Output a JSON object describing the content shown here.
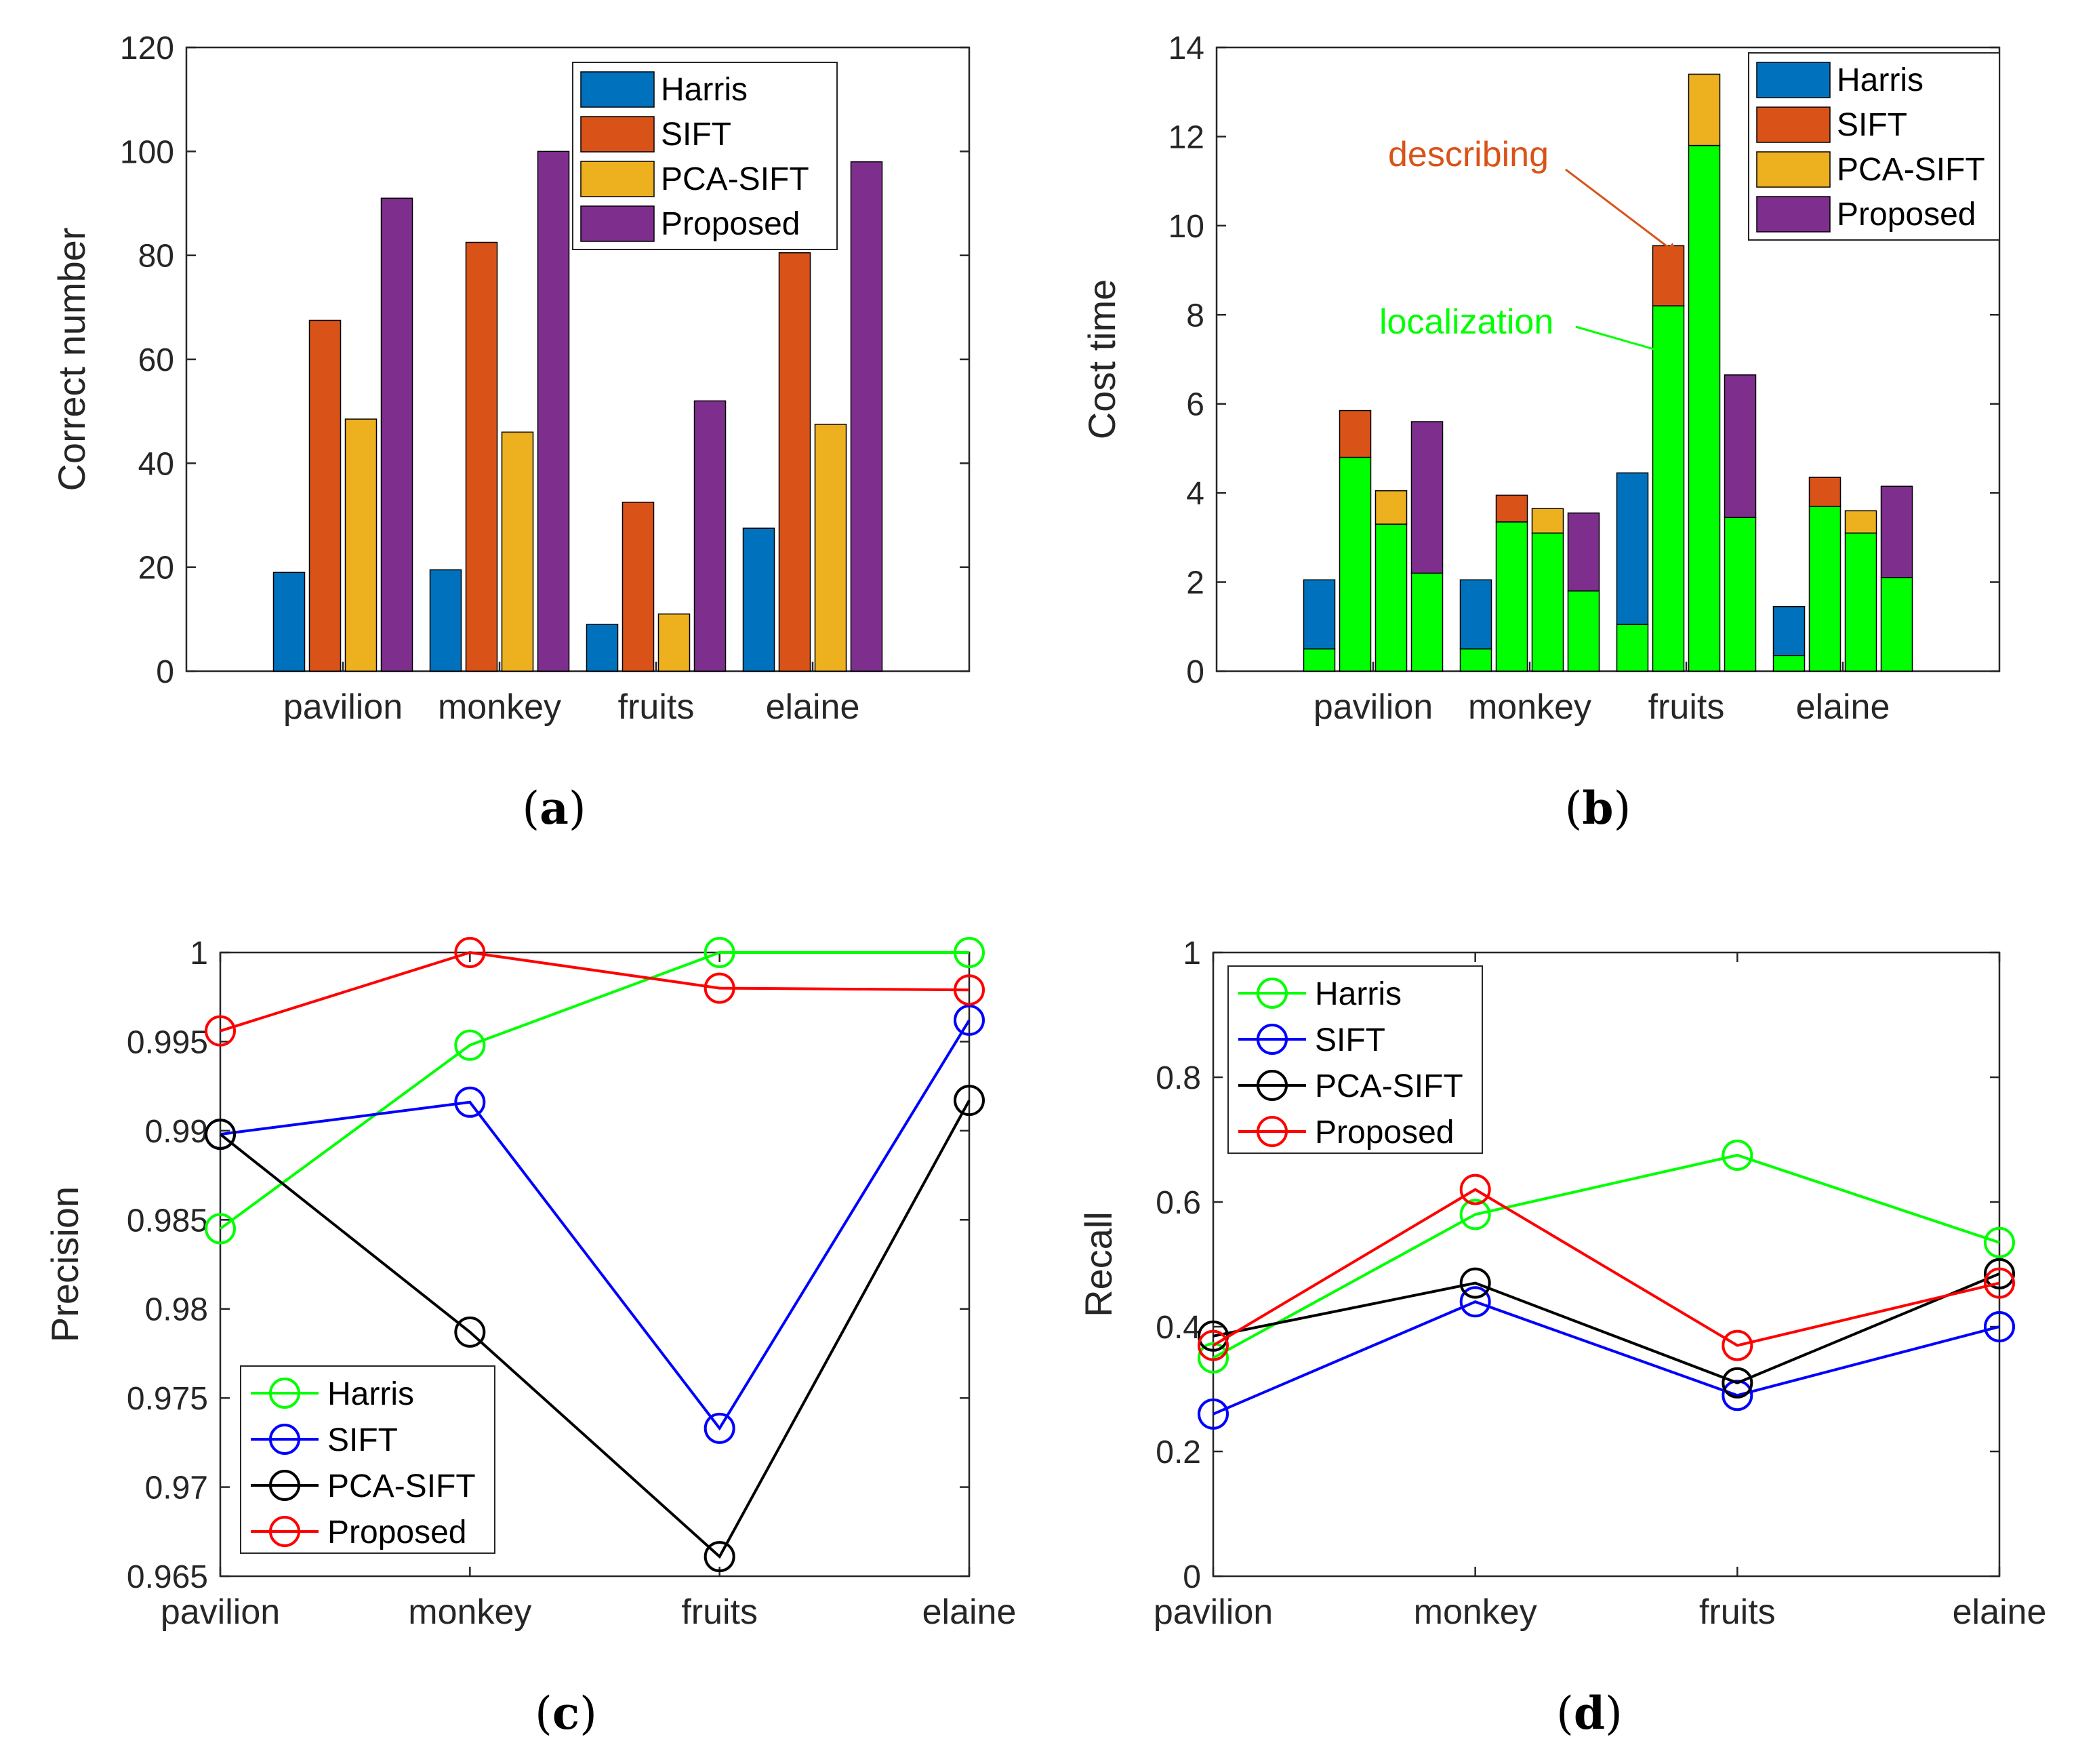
{
  "colors": {
    "harris_bar": "#0072BD",
    "sift_bar": "#D95319",
    "pca_bar": "#EDB120",
    "proposed_bar": "#7E2F8E",
    "localization": "#00FF00",
    "describing_text": "#D95319",
    "harris_line": "#00FF00",
    "sift_line": "#0000FF",
    "pca_line": "#000000",
    "proposed_line": "#FF0000"
  },
  "chart_data": [
    {
      "id": "a",
      "caption_letter": "a",
      "type": "bar",
      "categories": [
        "pavilion",
        "monkey",
        "fruits",
        "elaine"
      ],
      "series": [
        {
          "name": "Harris",
          "values": [
            19,
            19.5,
            9,
            27.5
          ]
        },
        {
          "name": "SIFT",
          "values": [
            67.5,
            82.5,
            32.5,
            80.5
          ]
        },
        {
          "name": "PCA-SIFT",
          "values": [
            48.5,
            46,
            11,
            47.5
          ]
        },
        {
          "name": "Proposed",
          "values": [
            91,
            100,
            52,
            98
          ]
        }
      ],
      "xlabel": "",
      "ylabel": "Correct number",
      "ylim": [
        0,
        120
      ],
      "yticks": [
        "0",
        "20",
        "40",
        "60",
        "80",
        "100",
        "120"
      ],
      "legend": "top-right"
    },
    {
      "id": "b",
      "caption_letter": "b",
      "type": "stacked-bar",
      "categories": [
        "pavilion",
        "monkey",
        "fruits",
        "elaine"
      ],
      "series": [
        {
          "name": "Harris",
          "localization": [
            0.5,
            0.5,
            1.05,
            0.35
          ],
          "total": [
            2.05,
            2.05,
            4.45,
            1.45
          ]
        },
        {
          "name": "SIFT",
          "localization": [
            4.8,
            3.35,
            8.2,
            3.7
          ],
          "total": [
            5.85,
            3.95,
            9.55,
            4.35
          ]
        },
        {
          "name": "PCA-SIFT",
          "localization": [
            3.3,
            3.1,
            11.8,
            3.1
          ],
          "total": [
            4.05,
            3.65,
            13.4,
            3.6
          ]
        },
        {
          "name": "Proposed",
          "localization": [
            2.2,
            1.8,
            3.45,
            2.1
          ],
          "total": [
            5.6,
            3.55,
            6.65,
            4.15
          ]
        }
      ],
      "xlabel": "",
      "ylabel": "Cost time",
      "ylim": [
        0,
        14
      ],
      "yticks": [
        "0",
        "2",
        "4",
        "6",
        "8",
        "10",
        "12",
        "14"
      ],
      "legend": "top-right",
      "annotations": [
        {
          "text": "describing",
          "target_series": "SIFT",
          "target_category": "fruits"
        },
        {
          "text": "localization",
          "target_series": "SIFT",
          "target_category": "fruits"
        }
      ]
    },
    {
      "id": "c",
      "caption_letter": "c",
      "type": "line",
      "categories": [
        "pavilion",
        "monkey",
        "fruits",
        "elaine"
      ],
      "series": [
        {
          "name": "Harris",
          "values": [
            0.9845,
            0.9948,
            1.0,
            1.0
          ]
        },
        {
          "name": "SIFT",
          "values": [
            0.9898,
            0.9916,
            0.9733,
            0.9962
          ]
        },
        {
          "name": "PCA-SIFT",
          "values": [
            0.9898,
            0.9787,
            0.9661,
            0.9917
          ]
        },
        {
          "name": "Proposed",
          "values": [
            0.9956,
            1.0,
            0.998,
            0.9979
          ]
        }
      ],
      "xlabel": "",
      "ylabel": "Precision",
      "ylim": [
        0.965,
        1.0
      ],
      "yticks": [
        "0.965",
        "0.97",
        "0.975",
        "0.98",
        "0.985",
        "0.99",
        "0.995",
        "1"
      ],
      "legend": "bottom-left"
    },
    {
      "id": "d",
      "caption_letter": "d",
      "type": "line",
      "categories": [
        "pavilion",
        "monkey",
        "fruits",
        "elaine"
      ],
      "series": [
        {
          "name": "Harris",
          "values": [
            0.35,
            0.58,
            0.675,
            0.535
          ]
        },
        {
          "name": "SIFT",
          "values": [
            0.26,
            0.44,
            0.29,
            0.4
          ]
        },
        {
          "name": "PCA-SIFT",
          "values": [
            0.385,
            0.47,
            0.31,
            0.485
          ]
        },
        {
          "name": "Proposed",
          "values": [
            0.37,
            0.62,
            0.37,
            0.47
          ]
        }
      ],
      "xlabel": "",
      "ylabel": "Recall",
      "ylim": [
        0,
        1
      ],
      "yticks": [
        "0",
        "0.2",
        "0.4",
        "0.6",
        "0.8",
        "1"
      ],
      "legend": "top-left"
    }
  ]
}
